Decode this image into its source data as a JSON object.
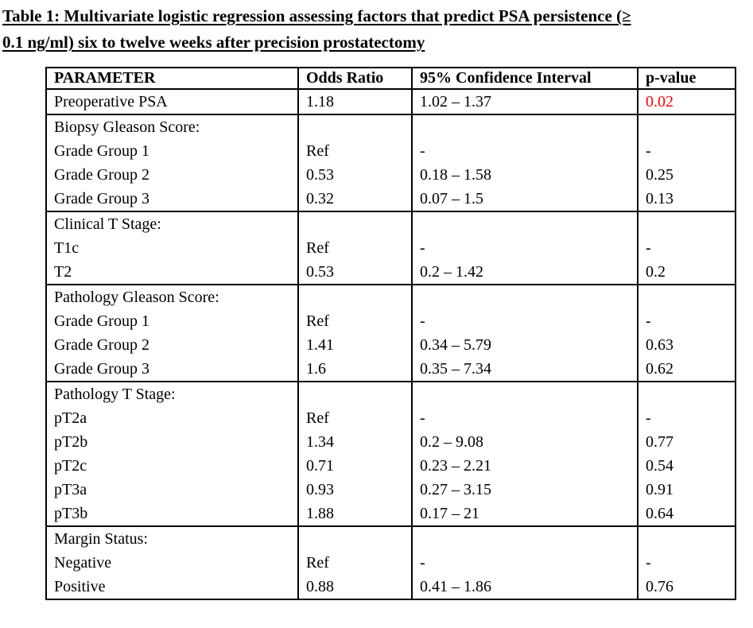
{
  "page": {
    "background": "#ffffff"
  },
  "colors": {
    "text": "#000000",
    "border": "#000000",
    "highlight_p_value": "#ff0000"
  },
  "title": {
    "line1": "Table 1: Multivariate logistic regression assessing factors that predict PSA persistence (≥",
    "line2": "0.1 ng/ml) six to twelve weeks after precision prostatectomy"
  },
  "table": {
    "headers": [
      "PARAMETER",
      "Odds Ratio",
      "95% Confidence Interval",
      "p-value"
    ],
    "sections": [
      {
        "name": "preoperative-psa",
        "rows": [
          {
            "parameter": "Preoperative PSA",
            "odds_ratio": "1.18",
            "ci": "1.02 – 1.37",
            "p_value": "0.02",
            "p_value_highlight": true
          }
        ]
      },
      {
        "name": "biopsy-gleason-score",
        "rows": [
          {
            "parameter": "Biopsy Gleason Score:",
            "odds_ratio": "",
            "ci": "",
            "p_value": ""
          },
          {
            "parameter": "Grade Group 1",
            "odds_ratio": "Ref",
            "ci": "-",
            "p_value": "-"
          },
          {
            "parameter": "Grade Group 2",
            "odds_ratio": "0.53",
            "ci": "0.18 – 1.58",
            "p_value": "0.25"
          },
          {
            "parameter": "Grade Group 3",
            "odds_ratio": "0.32",
            "ci": "0.07 – 1.5",
            "p_value": "0.13"
          }
        ]
      },
      {
        "name": "clinical-t-stage",
        "rows": [
          {
            "parameter": "Clinical T Stage:",
            "odds_ratio": "",
            "ci": "",
            "p_value": ""
          },
          {
            "parameter": "T1c",
            "odds_ratio": "Ref",
            "ci": "-",
            "p_value": "-"
          },
          {
            "parameter": "T2",
            "odds_ratio": "0.53",
            "ci": "0.2 – 1.42",
            "p_value": "0.2"
          }
        ]
      },
      {
        "name": "pathology-gleason-score",
        "rows": [
          {
            "parameter": "Pathology Gleason Score:",
            "odds_ratio": "",
            "ci": "",
            "p_value": ""
          },
          {
            "parameter": "Grade Group 1",
            "odds_ratio": "Ref",
            "ci": "-",
            "p_value": "-"
          },
          {
            "parameter": "Grade Group 2",
            "odds_ratio": "1.41",
            "ci": "0.34 – 5.79",
            "p_value": "0.63"
          },
          {
            "parameter": "Grade Group 3",
            "odds_ratio": "1.6",
            "ci": "0.35 – 7.34",
            "p_value": "0.62"
          }
        ]
      },
      {
        "name": "pathology-t-stage",
        "rows": [
          {
            "parameter": "Pathology T Stage:",
            "odds_ratio": "",
            "ci": "",
            "p_value": ""
          },
          {
            "parameter": "pT2a",
            "odds_ratio": "Ref",
            "ci": "-",
            "p_value": "-"
          },
          {
            "parameter": "pT2b",
            "odds_ratio": "1.34",
            "ci": "0.2 – 9.08",
            "p_value": "0.77"
          },
          {
            "parameter": "pT2c",
            "odds_ratio": "0.71",
            "ci": "0.23 – 2.21",
            "p_value": "0.54"
          },
          {
            "parameter": "pT3a",
            "odds_ratio": "0.93",
            "ci": "0.27 – 3.15",
            "p_value": "0.91"
          },
          {
            "parameter": "pT3b",
            "odds_ratio": "1.88",
            "ci": "0.17 – 21",
            "p_value": "0.64"
          }
        ]
      },
      {
        "name": "margin-status",
        "rows": [
          {
            "parameter": "Margin Status:",
            "odds_ratio": "",
            "ci": "",
            "p_value": ""
          },
          {
            "parameter": "Negative",
            "odds_ratio": "Ref",
            "ci": "-",
            "p_value": "-"
          },
          {
            "parameter": "Positive",
            "odds_ratio": "0.88",
            "ci": "0.41 – 1.86",
            "p_value": "0.76"
          }
        ]
      }
    ]
  }
}
